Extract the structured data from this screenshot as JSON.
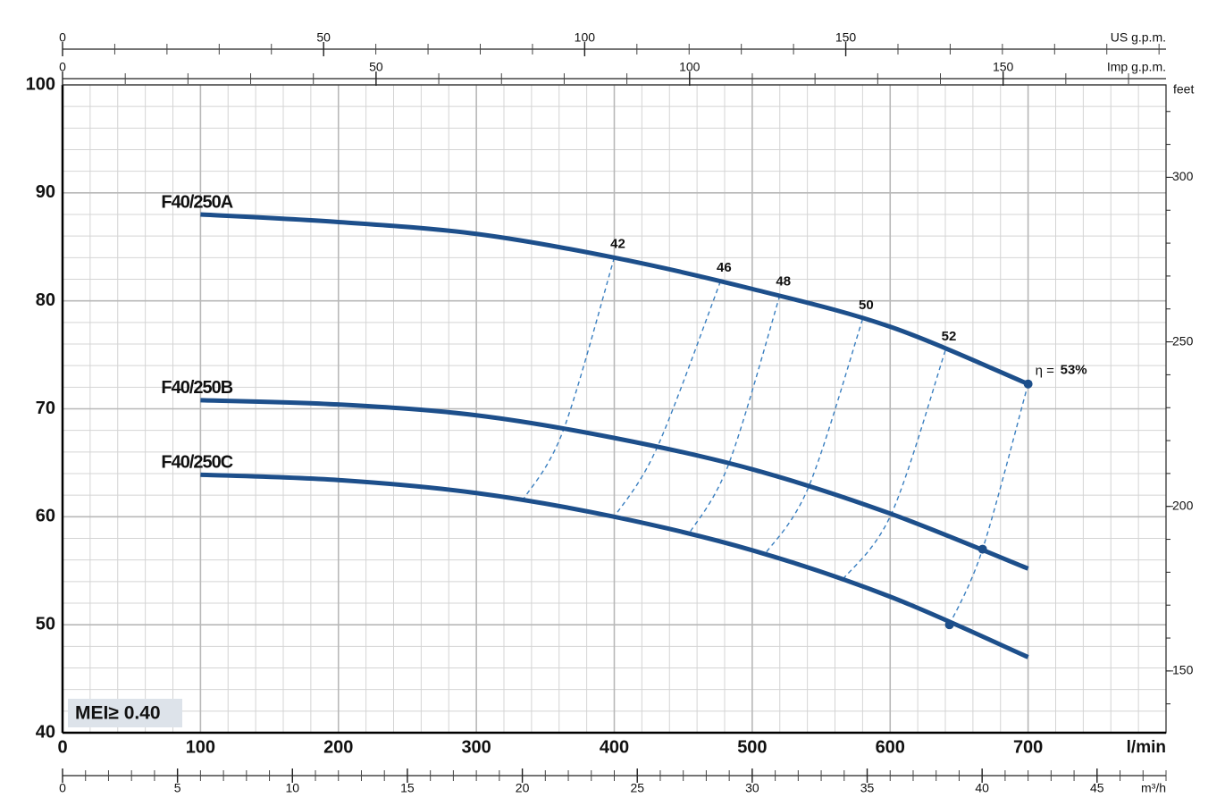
{
  "chart_data": {
    "type": "line",
    "x_label": "l/min",
    "xlim": [
      0,
      800
    ],
    "xticks": [
      0,
      100,
      200,
      300,
      400,
      500,
      600,
      700
    ],
    "ylim": [
      40,
      100
    ],
    "yticks": [
      40,
      50,
      60,
      70,
      80,
      90,
      100
    ],
    "y2_label": "feet",
    "y2lim": [
      131.23,
      328.08
    ],
    "y2ticks": [
      150,
      200,
      250,
      300
    ],
    "top_axes": [
      {
        "label": "US g.p.m.",
        "lim": [
          0,
          211.34
        ],
        "ticks": [
          0,
          50,
          100,
          150
        ]
      },
      {
        "label": "Imp g.p.m.",
        "lim": [
          0,
          175.98
        ],
        "ticks": [
          0,
          50,
          100,
          150
        ]
      }
    ],
    "bottom_axis": {
      "label": "m³/h",
      "lim": [
        0,
        48
      ],
      "ticks": [
        0,
        5,
        10,
        15,
        20,
        25,
        30,
        35,
        40,
        45
      ]
    },
    "grid": true,
    "x": [
      100,
      200,
      300,
      400,
      500,
      600,
      700
    ],
    "series": [
      {
        "name": "F40/250A",
        "color": "#1d4f8b",
        "values": [
          88.0,
          87.3,
          86.2,
          84.0,
          81.1,
          77.6,
          72.3
        ]
      },
      {
        "name": "F40/250B",
        "color": "#1d4f8b",
        "values": [
          70.8,
          70.4,
          69.4,
          67.3,
          64.4,
          60.3,
          55.2
        ]
      },
      {
        "name": "F40/250C",
        "color": "#1d4f8b",
        "values": [
          63.9,
          63.4,
          62.2,
          60.0,
          56.9,
          52.6,
          47.0
        ]
      }
    ],
    "efficiency": {
      "symbol": "η =",
      "color": "#3a7fc0",
      "values": [
        42,
        46,
        48,
        50,
        52,
        53
      ],
      "value_labels": [
        "42",
        "46",
        "48",
        "50",
        "52",
        "53%"
      ],
      "lines": [
        {
          "x": [
            400,
            363,
            334
          ],
          "y": [
            84.0,
            68.0,
            61.6
          ]
        },
        {
          "x": [
            477,
            431,
            400
          ],
          "y": [
            81.8,
            66.4,
            60.0
          ]
        },
        {
          "x": [
            520,
            483,
            454
          ],
          "y": [
            80.5,
            64.9,
            58.4
          ]
        },
        {
          "x": [
            580,
            541,
            509
          ],
          "y": [
            78.3,
            62.8,
            56.5
          ]
        },
        {
          "x": [
            640,
            601,
            565
          ],
          "y": [
            75.4,
            60.3,
            54.1
          ]
        },
        {
          "x": [
            700,
            667,
            643
          ],
          "y": [
            72.3,
            57.0,
            50.0
          ]
        }
      ]
    },
    "annotation": "MEI≥ 0.40"
  }
}
